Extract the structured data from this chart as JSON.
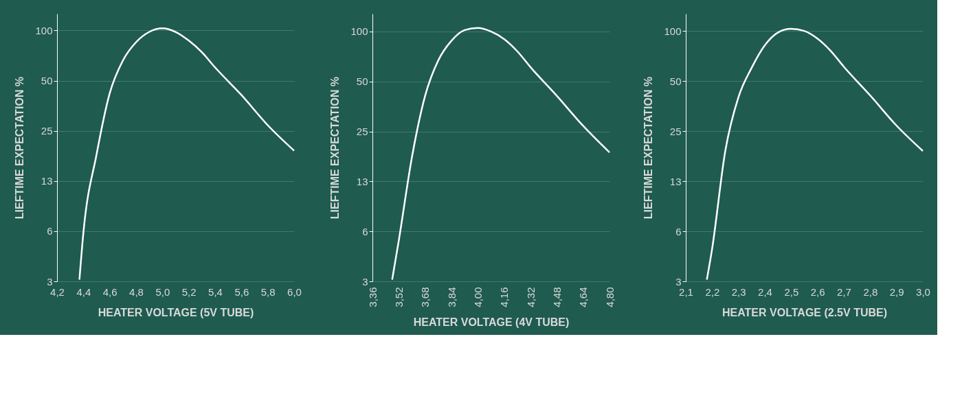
{
  "chart_data": [
    {
      "type": "line",
      "xlabel": "HEATER VOLTAGE (5V TUBE)",
      "ylabel": "LIEFTIME EXPECTATION %",
      "log": "y",
      "grid": "y",
      "marker": "none",
      "line_style": "solid",
      "xlim": [
        4.2,
        6.0
      ],
      "xticks": [
        {
          "value": 4.2,
          "label": "4,2"
        },
        {
          "value": 4.4,
          "label": "4,4"
        },
        {
          "value": 4.6,
          "label": "4,6"
        },
        {
          "value": 4.8,
          "label": "4,8"
        },
        {
          "value": 5.0,
          "label": "5,0"
        },
        {
          "value": 5.2,
          "label": "5,2"
        },
        {
          "value": 5.4,
          "label": "5,4"
        },
        {
          "value": 5.6,
          "label": "5,6"
        },
        {
          "value": 5.8,
          "label": "5,8"
        },
        {
          "value": 6.0,
          "label": "6,0"
        }
      ],
      "ylim": [
        3.125,
        126
      ],
      "yticks": [
        {
          "value": 3.125,
          "label": "3"
        },
        {
          "value": 6.25,
          "label": "6"
        },
        {
          "value": 12.5,
          "label": "13"
        },
        25,
        50,
        100
      ],
      "series": [
        {
          "color": "#ffffff",
          "x": [
            4.37,
            4.4,
            4.5,
            4.6,
            4.7,
            4.8,
            4.9,
            5.0,
            5.1,
            5.2,
            5.3,
            5.4,
            5.6,
            5.8,
            6.0
          ],
          "values": [
            3.2,
            6.1,
            18,
            42,
            66,
            85,
            98,
            103,
            98,
            87,
            74,
            60,
            41,
            27,
            19
          ]
        }
      ]
    },
    {
      "type": "line",
      "xlabel": "HEATER VOLTAGE (4V TUBE)",
      "ylabel": "LIEFTIME EXPECTATION %",
      "log": "y",
      "grid": "y",
      "marker": "none",
      "line_style": "solid",
      "xlim": [
        3.36,
        4.8
      ],
      "xticks": [
        {
          "value": 3.36,
          "label": "3,36"
        },
        {
          "value": 3.52,
          "label": "3,52"
        },
        {
          "value": 3.68,
          "label": "3,68"
        },
        {
          "value": 3.84,
          "label": "3,84"
        },
        {
          "value": 4.0,
          "label": "4,00"
        },
        {
          "value": 4.16,
          "label": "4,16"
        },
        {
          "value": 4.32,
          "label": "4,32"
        },
        {
          "value": 4.48,
          "label": "4,48"
        },
        {
          "value": 4.64,
          "label": "4,64"
        },
        {
          "value": 4.8,
          "label": "4,80"
        }
      ],
      "ylim": [
        3.125,
        128
      ],
      "yticks": [
        {
          "value": 3.125,
          "label": "3"
        },
        {
          "value": 6.25,
          "label": "6"
        },
        {
          "value": 12.5,
          "label": "13"
        },
        25,
        50,
        100
      ],
      "series": [
        {
          "color": "#ffffff",
          "x": [
            3.48,
            3.52,
            3.6,
            3.68,
            3.76,
            3.84,
            3.92,
            4.0,
            4.08,
            4.16,
            4.24,
            4.32,
            4.48,
            4.64,
            4.8
          ],
          "values": [
            3.2,
            5.5,
            17.5,
            41,
            67,
            88,
            102,
            105,
            100,
            90,
            76,
            61,
            41,
            27,
            18.7
          ]
        }
      ]
    },
    {
      "type": "line",
      "xlabel": "HEATER VOLTAGE (2.5V TUBE)",
      "ylabel": "LIEFTIME EXPECTATION %",
      "log": "y",
      "grid": "y",
      "marker": "none",
      "line_style": "solid",
      "xlim": [
        2.1,
        3.0
      ],
      "xticks": [
        {
          "value": 2.1,
          "label": "2,1"
        },
        {
          "value": 2.2,
          "label": "2,2"
        },
        {
          "value": 2.3,
          "label": "2,3"
        },
        {
          "value": 2.4,
          "label": "2,4"
        },
        {
          "value": 2.5,
          "label": "2,5"
        },
        {
          "value": 2.6,
          "label": "2,6"
        },
        {
          "value": 2.7,
          "label": "2,7"
        },
        {
          "value": 2.8,
          "label": "2,8"
        },
        {
          "value": 2.9,
          "label": "2,9"
        },
        {
          "value": 3.0,
          "label": "3,0"
        }
      ],
      "ylim": [
        3.125,
        127
      ],
      "yticks": [
        {
          "value": 3.125,
          "label": "3"
        },
        {
          "value": 6.25,
          "label": "6"
        },
        {
          "value": 12.5,
          "label": "13"
        },
        25,
        50,
        100
      ],
      "series": [
        {
          "color": "#ffffff",
          "x": [
            2.18,
            2.2,
            2.25,
            2.3,
            2.35,
            2.4,
            2.45,
            2.5,
            2.55,
            2.6,
            2.65,
            2.7,
            2.8,
            2.9,
            3.0
          ],
          "values": [
            3.2,
            4.9,
            19,
            40,
            60,
            82,
            98,
            103,
            100,
            90,
            76,
            61,
            41,
            27,
            19
          ]
        }
      ]
    }
  ]
}
